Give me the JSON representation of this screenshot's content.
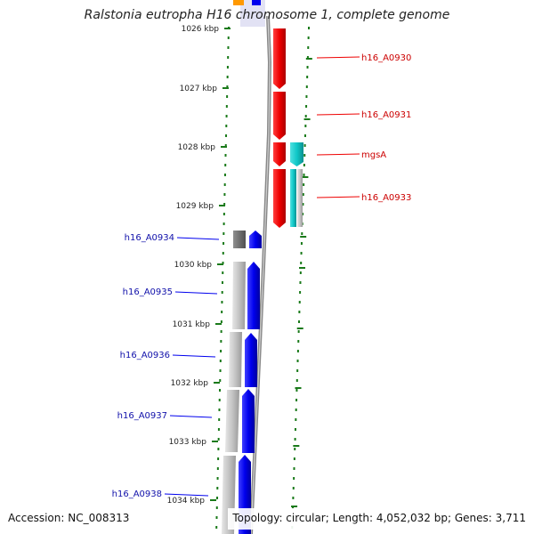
{
  "title": "Ralstonia eutropha H16 chromosome 1, complete genome",
  "footer": {
    "accession": "Accession: NC_008313",
    "topology": "Topology: circular;",
    "length": "Length: 4,052,032 bp;",
    "genes": "Genes: 3,711"
  },
  "colors": {
    "forward_gene": "#ee0000",
    "forward_label": "#cc0000",
    "reverse_gene": "#0000ee",
    "reverse_label": "#1010aa",
    "gray_gene": "#c8c8c8",
    "dark_gray_gene": "#707070",
    "cyan_gene": "#10c8c8",
    "ruler": "#1a7a1a",
    "backbone": "#888888"
  },
  "ruler_labels": [
    "1026 kbp",
    "1027 kbp",
    "1028 kbp",
    "1029 kbp",
    "1030 kbp",
    "1031 kbp",
    "1032 kbp",
    "1033 kbp",
    "1034 kbp"
  ],
  "forward_genes": [
    {
      "label": "h16_A0930"
    },
    {
      "label": "h16_A0931"
    },
    {
      "label": "mgsA"
    },
    {
      "label": "h16_A0933"
    }
  ],
  "reverse_genes": [
    {
      "label": "h16_A0934"
    },
    {
      "label": "h16_A0935"
    },
    {
      "label": "h16_A0936"
    },
    {
      "label": "h16_A0937"
    },
    {
      "label": "h16_A0938"
    }
  ]
}
